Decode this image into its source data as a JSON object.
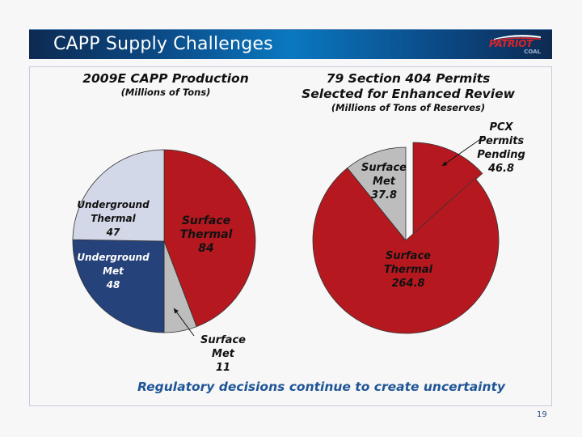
{
  "slide": {
    "title": "CAPP Supply Challenges",
    "logo": {
      "name": "PATRIOT",
      "sub": "COAL"
    },
    "footer_note": "Regulatory decisions continue to create uncertainty",
    "page_number": "19"
  },
  "colors": {
    "surface_thermal": "#b5191f",
    "surface_met": "#bdbdbd",
    "underground_met": "#25427a",
    "underground_thermal": "#d3d8e8",
    "footer_note": "#1f5597",
    "header_dark": "#0d2a52",
    "header_light": "#0a78c0"
  },
  "chart_data": [
    {
      "type": "pie",
      "title": "2009E CAPP Production",
      "subtitle": "(Millions of Tons)",
      "start": "12 o'clock, clockwise",
      "slices": [
        {
          "label_lines": [
            "Surface",
            "Thermal",
            "84"
          ],
          "name": "Surface Thermal",
          "value": 84,
          "color_key": "surface_thermal",
          "label_color": "#111111"
        },
        {
          "label_lines": [
            "Surface",
            "Met",
            "11"
          ],
          "name": "Surface Met",
          "value": 11,
          "color_key": "surface_met",
          "label_color": "#111111",
          "callout": true
        },
        {
          "label_lines": [
            "Underground",
            "Met",
            "48"
          ],
          "name": "Underground Met",
          "value": 48,
          "color_key": "underground_met",
          "label_color": "#ffffff"
        },
        {
          "label_lines": [
            "Underground",
            "Thermal",
            "47"
          ],
          "name": "Underground Thermal",
          "value": 47,
          "color_key": "underground_thermal",
          "label_color": "#111111"
        }
      ]
    },
    {
      "type": "pie",
      "title_lines": [
        "79 Section 404 Permits",
        "Selected for Enhanced Review"
      ],
      "subtitle": "(Millions of Tons of Reserves)",
      "start": "12 o'clock, clockwise",
      "slices": [
        {
          "label_lines": [
            "PCX",
            "Permits",
            "Pending",
            "46.8"
          ],
          "name": "PCX Permits Pending",
          "value": 46.8,
          "color_key": "surface_thermal",
          "label_color": "#111111",
          "exploded": true,
          "callout": true
        },
        {
          "label_lines": [
            "Surface",
            "Thermal",
            "264.8"
          ],
          "name": "Surface Thermal",
          "value": 264.8,
          "color_key": "surface_thermal",
          "label_color": "#111111"
        },
        {
          "label_lines": [
            "Surface",
            "Met",
            "37.8"
          ],
          "name": "Surface Met",
          "value": 37.8,
          "color_key": "surface_met",
          "label_color": "#111111"
        }
      ]
    }
  ]
}
